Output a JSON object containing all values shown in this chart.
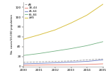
{
  "years": [
    2000,
    2001,
    2002,
    2003,
    2004,
    2005
  ],
  "series": {
    "All": {
      "color": "#999999",
      "linestyle": "--",
      "linewidth": 0.6,
      "values": [
        8,
        9,
        10,
        11,
        13,
        15
      ],
      "label": "All"
    },
    "18-44": {
      "color": "#e87868",
      "linestyle": "-",
      "linewidth": 0.6,
      "values": [
        2,
        2.5,
        3,
        3.2,
        3.8,
        5
      ],
      "label": "18–44"
    },
    "45-64": {
      "color": "#6878c0",
      "linestyle": "-",
      "linewidth": 0.6,
      "values": [
        5,
        6,
        7,
        8.5,
        10,
        13
      ],
      "label": "45–64"
    },
    "65-84": {
      "color": "#70b080",
      "linestyle": "-",
      "linewidth": 0.6,
      "values": [
        22,
        26,
        31,
        36,
        42,
        50
      ],
      "label": "65–84"
    },
    ">=85": {
      "color": "#d8c040",
      "linestyle": "-",
      "linewidth": 0.7,
      "values": [
        55,
        64,
        74,
        88,
        104,
        126
      ],
      "label": "≥85"
    }
  },
  "ylabel": "No. cases/10,000 population",
  "ylim": [
    0,
    130
  ],
  "yticks": [
    0,
    20,
    40,
    60,
    80,
    100,
    120
  ],
  "xticks": [
    2000,
    2001,
    2002,
    2003,
    2004,
    2005
  ],
  "xlim": [
    2000,
    2005
  ],
  "background_color": "#ffffff",
  "legend_order": [
    "All",
    "18-44",
    "45-64",
    "65-84",
    ">=85"
  ]
}
